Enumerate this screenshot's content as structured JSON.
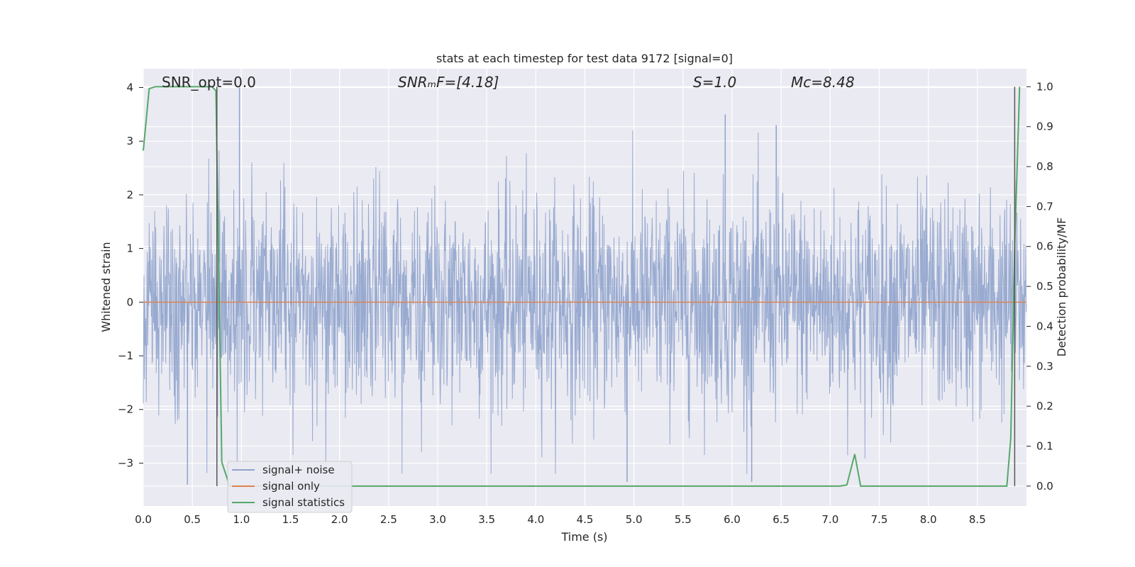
{
  "chart_data": {
    "type": "line",
    "title": "stats at each timestep for test data 9172 [signal=0]",
    "xlabel": "Time (s)",
    "ylabel_left": "Whitened strain",
    "ylabel_right": "Detection probability/MF",
    "xlim": [
      0.0,
      9.0
    ],
    "ylim_left": [
      -3.8,
      4.35
    ],
    "ylim_right": [
      -0.05,
      1.045
    ],
    "x_ticks": [
      "0.0",
      "0.5",
      "1.0",
      "1.5",
      "2.0",
      "2.5",
      "3.0",
      "3.5",
      "4.0",
      "4.5",
      "5.0",
      "5.5",
      "6.0",
      "6.5",
      "7.0",
      "7.5",
      "8.0",
      "8.5"
    ],
    "y_ticks_left": [
      "4",
      "3",
      "2",
      "1",
      "0",
      "−1",
      "−2",
      "−3"
    ],
    "y_ticks_right": [
      "1.0",
      "0.9",
      "0.8",
      "0.7",
      "0.6",
      "0.5",
      "0.4",
      "0.3",
      "0.2",
      "0.1",
      "0.0"
    ],
    "annotations": [
      {
        "id": "snr-opt",
        "text": "SNR_opt=0.0"
      },
      {
        "id": "snr-mf",
        "text": "SNRₘF=[4.18]"
      },
      {
        "id": "s",
        "text": "S=1.0"
      },
      {
        "id": "mc",
        "text": "Mᴄ=8.48"
      }
    ],
    "grid": true,
    "legend": "bottom-left",
    "vertical_markers_x": [
      0.75,
      8.88
    ],
    "series": [
      {
        "name": "signal+ noise",
        "color": "#8fa3cc",
        "axis": "left",
        "noise_band_sigma": 1.0,
        "visible_extremes": [
          {
            "x": 0.98,
            "y": 4.0
          },
          {
            "x": 5.93,
            "y": 3.5
          },
          {
            "x": 6.45,
            "y": 3.3
          },
          {
            "x": 0.45,
            "y": -3.4
          },
          {
            "x": 4.93,
            "y": -3.35
          },
          {
            "x": 6.2,
            "y": -3.35
          }
        ]
      },
      {
        "name": "signal only",
        "color": "#dd8452",
        "axis": "left",
        "x": [
          0.0,
          9.0
        ],
        "y": [
          0.0,
          0.0
        ]
      },
      {
        "name": "signal statistics",
        "color": "#55a868",
        "axis": "right",
        "x": [
          0.0,
          0.06,
          0.12,
          0.2,
          0.7,
          0.74,
          0.8,
          0.88,
          1.0,
          7.1,
          7.17,
          7.25,
          7.31,
          8.8,
          8.84,
          8.88,
          8.93
        ],
        "y": [
          0.84,
          0.995,
          1.0,
          1.0,
          1.0,
          0.99,
          0.06,
          0.0,
          0.0,
          0.0,
          0.003,
          0.08,
          0.0,
          0.0,
          0.12,
          0.6,
          1.0
        ]
      }
    ]
  }
}
